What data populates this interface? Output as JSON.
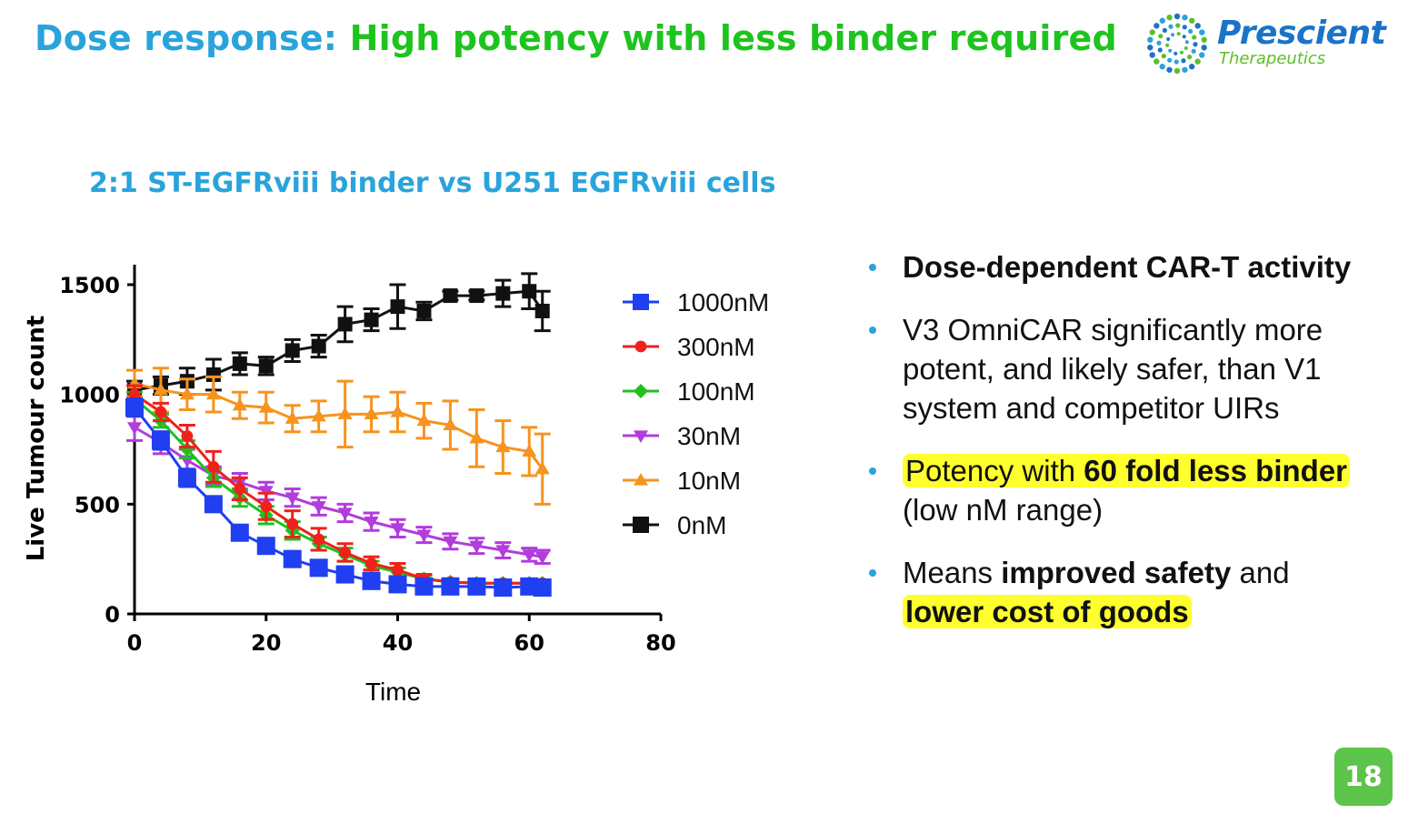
{
  "slide": {
    "title_part1": "Dose response:",
    "title_part2": "High potency with less binder required",
    "page_number": "18"
  },
  "logo": {
    "name": "Prescient",
    "subtitle": "Therapeutics",
    "dot_colors": [
      "#1a73c8",
      "#29a3dc",
      "#5cbf2a"
    ]
  },
  "bullets": {
    "b1": "Dose-dependent CAR-T activity",
    "b2": "V3 OmniCAR significantly more potent, and likely safer, than V1 system and competitor UIRs",
    "b3_pre": "Potency with",
    "b3_bold": "60 fold less binder",
    "b3_post": "(low nM range)",
    "b4_pre": "Means",
    "b4_bold1": "improved safety",
    "b4_mid": "and",
    "b4_bold2": "lower cost of goods"
  },
  "chart_data": {
    "type": "line",
    "title": "2:1 ST-EGFRviii binder vs U251 EGFRviii cells",
    "xlabel": "Time",
    "ylabel": "Live Tumour count",
    "xlim": [
      0,
      80
    ],
    "ylim": [
      0,
      1500
    ],
    "xticks": [
      0,
      20,
      40,
      60,
      80
    ],
    "yticks": [
      0,
      500,
      1000,
      1500
    ],
    "grid": false,
    "legend_position": "right",
    "x": [
      0,
      4,
      8,
      12,
      16,
      20,
      24,
      28,
      32,
      36,
      40,
      44,
      48,
      52,
      56,
      60,
      62
    ],
    "series": [
      {
        "name": "1000nM",
        "color": "#1f3ff0",
        "marker": "square",
        "values": [
          940,
          790,
          620,
          500,
          370,
          310,
          250,
          210,
          180,
          150,
          135,
          125,
          125,
          125,
          120,
          125,
          120
        ],
        "errors": [
          40,
          40,
          40,
          30,
          25,
          20,
          20,
          20,
          15,
          10,
          10,
          10,
          10,
          10,
          10,
          10,
          10
        ]
      },
      {
        "name": "300nM",
        "color": "#f0201a",
        "marker": "circle",
        "values": [
          1000,
          920,
          810,
          670,
          570,
          490,
          410,
          340,
          280,
          230,
          200,
          160,
          145,
          140,
          140,
          140,
          140
        ],
        "errors": [
          40,
          40,
          50,
          70,
          50,
          60,
          60,
          50,
          40,
          30,
          30,
          20,
          15,
          15,
          15,
          15,
          15
        ]
      },
      {
        "name": "100nM",
        "color": "#20c020",
        "marker": "diamond",
        "values": [
          980,
          880,
          750,
          620,
          530,
          450,
          380,
          320,
          270,
          220,
          190,
          160,
          145,
          140,
          140,
          140,
          140
        ],
        "errors": [
          30,
          30,
          40,
          40,
          40,
          40,
          40,
          30,
          30,
          20,
          20,
          15,
          15,
          15,
          15,
          15,
          15
        ]
      },
      {
        "name": "30nM",
        "color": "#b23cdc",
        "marker": "triangle-down",
        "values": [
          850,
          780,
          700,
          630,
          600,
          560,
          530,
          490,
          460,
          420,
          390,
          360,
          330,
          310,
          290,
          270,
          260
        ],
        "errors": [
          60,
          50,
          50,
          40,
          40,
          40,
          40,
          40,
          40,
          40,
          40,
          35,
          35,
          35,
          35,
          30,
          30
        ]
      },
      {
        "name": "10nM",
        "color": "#f7931e",
        "marker": "triangle-up",
        "values": [
          1050,
          1020,
          1000,
          1000,
          950,
          940,
          890,
          900,
          910,
          910,
          920,
          880,
          860,
          800,
          760,
          740,
          660
        ],
        "errors": [
          60,
          100,
          70,
          80,
          60,
          70,
          60,
          70,
          150,
          80,
          90,
          80,
          110,
          130,
          120,
          110,
          160
        ]
      },
      {
        "name": "0nM",
        "color": "#111111",
        "marker": "square",
        "values": [
          1020,
          1040,
          1060,
          1090,
          1140,
          1130,
          1200,
          1220,
          1320,
          1340,
          1400,
          1380,
          1450,
          1450,
          1460,
          1470,
          1380
        ],
        "errors": [
          40,
          40,
          60,
          70,
          50,
          40,
          50,
          50,
          80,
          50,
          100,
          40,
          20,
          20,
          60,
          80,
          90
        ]
      }
    ]
  }
}
